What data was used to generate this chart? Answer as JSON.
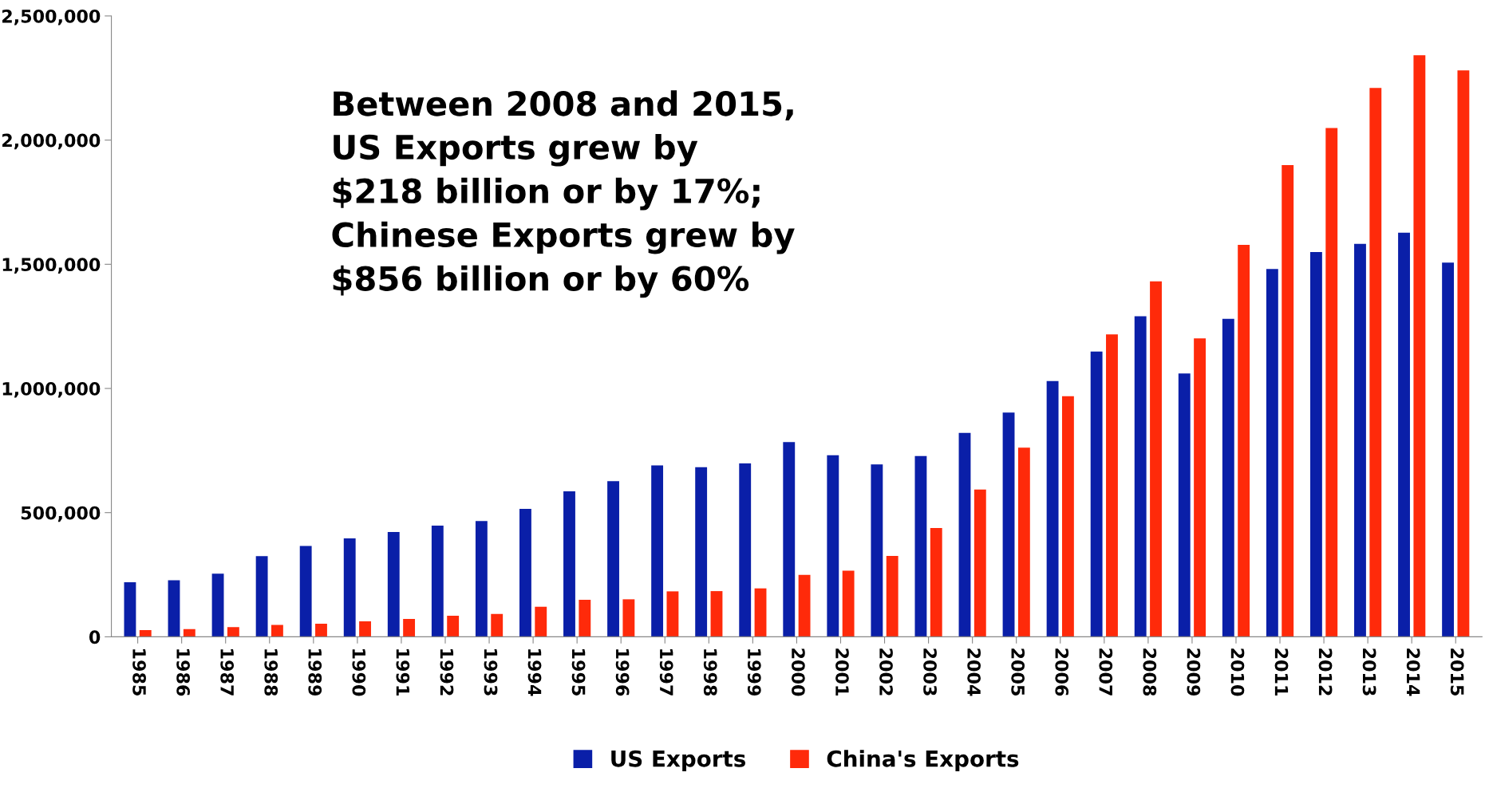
{
  "chart_data": {
    "type": "bar",
    "categories": [
      "1985",
      "1986",
      "1987",
      "1988",
      "1989",
      "1990",
      "1991",
      "1992",
      "1993",
      "1994",
      "1995",
      "1996",
      "1997",
      "1998",
      "1999",
      "2000",
      "2001",
      "2002",
      "2003",
      "2004",
      "2005",
      "2006",
      "2007",
      "2008",
      "2009",
      "2010",
      "2011",
      "2012",
      "2013",
      "2014",
      "2015"
    ],
    "series": [
      {
        "name": "US Exports",
        "color": "#0a1fa8",
        "values": [
          220000,
          228000,
          254000,
          325000,
          366000,
          396000,
          422000,
          448000,
          466000,
          515000,
          586000,
          627000,
          690000,
          683000,
          698000,
          784000,
          731000,
          694000,
          728000,
          821000,
          903000,
          1030000,
          1149000,
          1291000,
          1060000,
          1280000,
          1481000,
          1549000,
          1582000,
          1627000,
          1507000
        ]
      },
      {
        "name": "China's Exports",
        "color": "#ff2a0a",
        "values": [
          27000,
          31000,
          39000,
          48000,
          53000,
          62000,
          72000,
          85000,
          92000,
          121000,
          149000,
          151000,
          183000,
          184000,
          195000,
          249000,
          266000,
          326000,
          438000,
          593000,
          762000,
          969000,
          1218000,
          1431000,
          1202000,
          1578000,
          1899000,
          2049000,
          2210000,
          2342000,
          2281000
        ]
      }
    ],
    "ylim": [
      0,
      2500000
    ],
    "yticks": [
      {
        "value": 0,
        "label": "0"
      },
      {
        "value": 500000,
        "label": "500,000"
      },
      {
        "value": 1000000,
        "label": "1,000,000"
      },
      {
        "value": 1500000,
        "label": "1,500,000"
      },
      {
        "value": 2000000,
        "label": "2,000,000"
      },
      {
        "value": 2500000,
        "label": "2,500,000"
      }
    ],
    "annotations": [
      "Between 2008 and 2015,\nUS Exports grew by\n$218 billion or by 17%;\nChinese Exports grew by\n$856 billion or by 60%"
    ],
    "grid": false,
    "legend": "bottom"
  }
}
